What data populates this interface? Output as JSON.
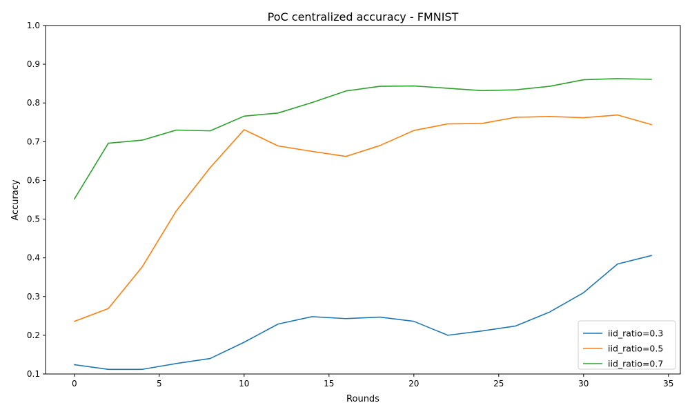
{
  "chart_data": {
    "type": "line",
    "title": "PoC centralized accuracy - FMNIST",
    "xlabel": "Rounds",
    "ylabel": "Accuracy",
    "xlim": [
      -1.7,
      35.7
    ],
    "ylim": [
      0.1,
      1.0
    ],
    "xticks": [
      0,
      5,
      10,
      15,
      20,
      25,
      30,
      35
    ],
    "yticks": [
      0.1,
      0.2,
      0.3,
      0.4,
      0.5,
      0.6,
      0.7,
      0.8,
      0.9,
      1.0
    ],
    "x": [
      0,
      2,
      4,
      6,
      8,
      10,
      12,
      14,
      16,
      18,
      20,
      22,
      24,
      26,
      28,
      30,
      32,
      34
    ],
    "series": [
      {
        "name": "iid_ratio=0.3",
        "color": "#1f77b4",
        "values": [
          0.124,
          0.112,
          0.112,
          0.127,
          0.14,
          0.182,
          0.229,
          0.248,
          0.243,
          0.247,
          0.236,
          0.2,
          0.211,
          0.224,
          0.26,
          0.31,
          0.384,
          0.406
        ]
      },
      {
        "name": "iid_ratio=0.5",
        "color": "#ff7f0e",
        "values": [
          0.236,
          0.269,
          0.377,
          0.521,
          0.633,
          0.731,
          0.689,
          0.675,
          0.662,
          0.69,
          0.729,
          0.746,
          0.747,
          0.763,
          0.765,
          0.762,
          0.769,
          0.744
        ]
      },
      {
        "name": "iid_ratio=0.7",
        "color": "#2ca02c",
        "values": [
          0.552,
          0.696,
          0.704,
          0.73,
          0.728,
          0.766,
          0.774,
          0.801,
          0.831,
          0.843,
          0.844,
          0.838,
          0.832,
          0.834,
          0.843,
          0.86,
          0.863,
          0.861
        ]
      }
    ],
    "legend_position": "lower-right",
    "grid": false
  }
}
